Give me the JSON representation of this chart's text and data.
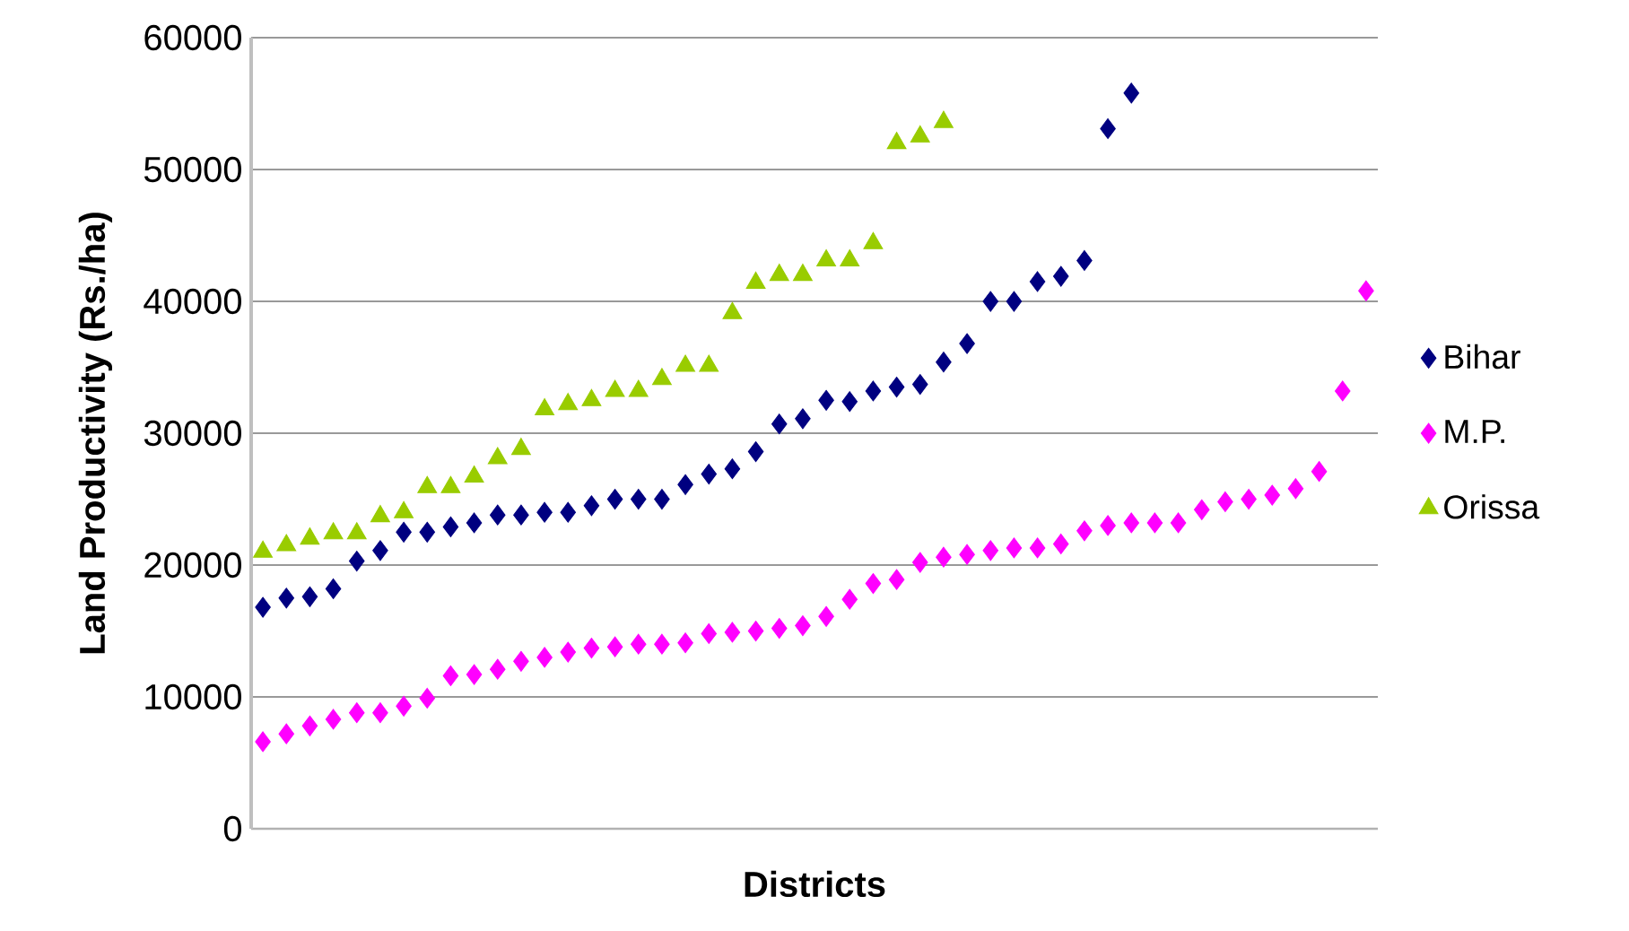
{
  "chart_data": {
    "type": "scatter",
    "xlabel": "Districts",
    "ylabel": "Land Productivity (Rs./ha)",
    "categories": [
      null,
      null,
      null,
      null,
      null,
      null,
      null,
      null,
      null,
      null,
      null,
      null,
      null,
      null,
      null,
      null,
      null,
      null,
      null,
      null,
      null,
      null,
      null,
      null,
      null,
      null,
      null,
      null,
      null,
      null,
      null,
      null,
      null,
      null,
      null,
      null,
      null,
      null,
      null,
      null,
      null,
      null,
      null,
      null,
      null,
      null,
      null,
      null
    ],
    "series": [
      {
        "name": "Bihar",
        "color": "#000080",
        "marker": "diamond",
        "values": [
          16800,
          17500,
          17600,
          18200,
          20300,
          21100,
          22500,
          22500,
          22900,
          23200,
          23800,
          23800,
          24000,
          24000,
          24500,
          25000,
          25000,
          25000,
          26100,
          26900,
          27300,
          28600,
          30700,
          31100,
          32500,
          32400,
          33200,
          33500,
          33700,
          35400,
          36800,
          40000,
          40000,
          41500,
          41900,
          43100,
          53100,
          55800,
          null,
          null,
          null,
          null,
          null,
          null,
          null,
          null,
          null,
          null
        ]
      },
      {
        "name": "M.P.",
        "color": "#ff00ff",
        "marker": "diamond",
        "values": [
          6600,
          7200,
          7800,
          8300,
          8800,
          8800,
          9300,
          9900,
          11600,
          11700,
          12100,
          12700,
          13000,
          13400,
          13700,
          13800,
          14000,
          14000,
          14100,
          14800,
          14900,
          15000,
          15200,
          15400,
          16100,
          17400,
          18600,
          18900,
          20200,
          20600,
          20800,
          21100,
          21300,
          21300,
          21600,
          22600,
          23000,
          23200,
          23200,
          23200,
          24200,
          24800,
          25000,
          25300,
          25800,
          27100,
          33200,
          40800
        ]
      },
      {
        "name": "Orissa",
        "color": "#99cc00",
        "marker": "triangle",
        "values": [
          21000,
          21500,
          22000,
          22400,
          22400,
          23700,
          24000,
          25900,
          25900,
          26700,
          28100,
          28800,
          31800,
          32200,
          32500,
          33200,
          33200,
          34100,
          35100,
          35100,
          39100,
          41400,
          42000,
          42000,
          43100,
          43100,
          44400,
          52000,
          52500,
          53600,
          null,
          null,
          null,
          null,
          null,
          null,
          null,
          null,
          null,
          null,
          null,
          null,
          null,
          null,
          null,
          null,
          null,
          null
        ]
      }
    ],
    "ylim": [
      0,
      60000
    ],
    "yticks": [
      0,
      10000,
      20000,
      30000,
      40000,
      50000,
      60000
    ],
    "grid": "y",
    "legend": "right",
    "tick_labels": "y"
  }
}
